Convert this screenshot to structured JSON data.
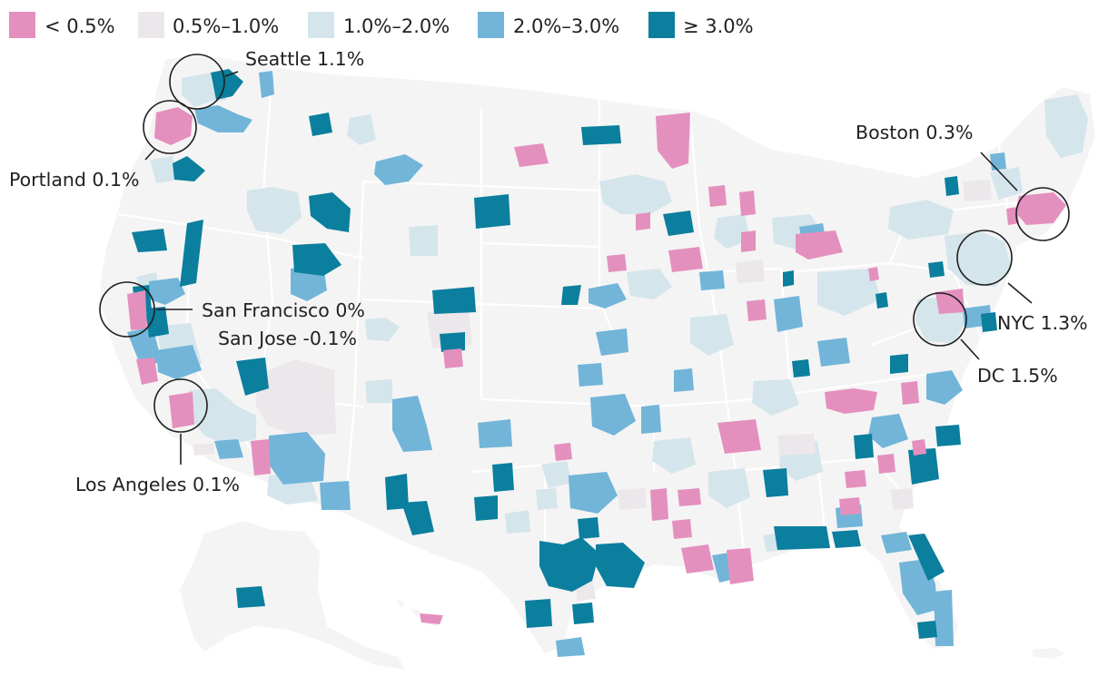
{
  "legend": [
    {
      "label": "< 0.5%",
      "color": "#e490be"
    },
    {
      "label": "0.5%–1.0%",
      "color": "#ece7ea"
    },
    {
      "label": "1.0%–2.0%",
      "color": "#d5e5ec"
    },
    {
      "label": "2.0%–3.0%",
      "color": "#72b5d8"
    },
    {
      "label": "≥ 3.0%",
      "color": "#0b7f9d"
    }
  ],
  "cities": {
    "seattle": "Seattle 1.1%",
    "portland": "Portland 0.1%",
    "san_francisco": "San Francisco 0%",
    "san_jose": "San Jose -0.1%",
    "los_angeles": "Los Angeles 0.1%",
    "boston": "Boston 0.3%",
    "nyc": "NYC 1.3%",
    "dc": "DC 1.5%"
  },
  "colors": {
    "land": "#f4f4f4",
    "border": "#ffffff",
    "callout": "#1f1f1f"
  }
}
